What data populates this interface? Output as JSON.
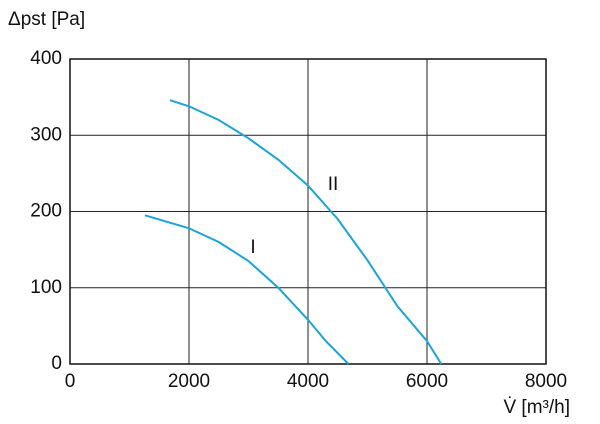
{
  "chart_data": {
    "type": "line",
    "y_label": "Δpst [Pa]",
    "x_label": "V̇ [m³/h]",
    "xlim": [
      0,
      8000
    ],
    "xticks": [
      0,
      2000,
      4000,
      6000,
      8000
    ],
    "ylim": [
      0,
      400
    ],
    "yticks": [
      0,
      100,
      200,
      300,
      400
    ],
    "grid": true,
    "series": [
      {
        "name": "I",
        "color": "#1ba3dc",
        "x": [
          1260,
          2000,
          2500,
          3000,
          3500,
          4000,
          4300,
          4680
        ],
        "values": [
          195,
          178,
          160,
          135,
          100,
          58,
          30,
          0
        ]
      },
      {
        "name": "II",
        "color": "#1ba3dc",
        "x": [
          1680,
          2000,
          2500,
          3000,
          3500,
          4000,
          4500,
          5000,
          5500,
          6000,
          6240
        ],
        "values": [
          346,
          338,
          320,
          296,
          268,
          234,
          190,
          136,
          76,
          30,
          0
        ]
      }
    ]
  }
}
